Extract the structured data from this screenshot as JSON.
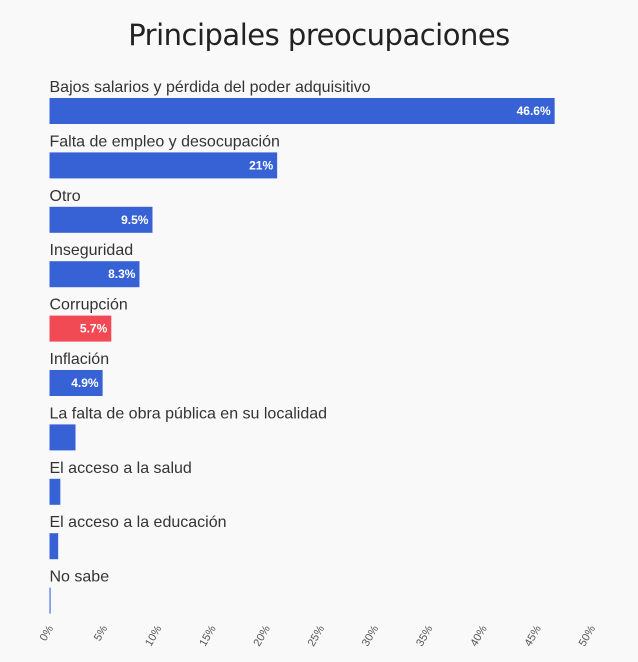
{
  "chart_data": {
    "type": "bar",
    "orientation": "horizontal",
    "title": "Principales preocupaciones",
    "categories": [
      "Bajos salarios y pérdida del poder adquisitivo",
      "Falta de empleo y desocupación",
      "Otro",
      "Inseguridad",
      "Corrupción",
      "Inflación",
      "La falta de obra pública en su localidad",
      "El acceso a la salud",
      "El acceso a la educación",
      "No sabe"
    ],
    "values": [
      46.6,
      21,
      9.5,
      8.3,
      5.7,
      4.9,
      2.4,
      1.0,
      0.8,
      0.1
    ],
    "data_labels": [
      "46.6%",
      "21%",
      "9.5%",
      "8.3%",
      "5.7%",
      "4.9%",
      "",
      "",
      "",
      ""
    ],
    "xlim": [
      0,
      50
    ],
    "x_ticks": [
      "0%",
      "5%",
      "10%",
      "15%",
      "20%",
      "25%",
      "30%",
      "35%",
      "40%",
      "45%",
      "50%"
    ],
    "colors": {
      "default": "#3762d6",
      "highlight": "#f24a55",
      "highlight_index": 4
    },
    "grid": false
  }
}
